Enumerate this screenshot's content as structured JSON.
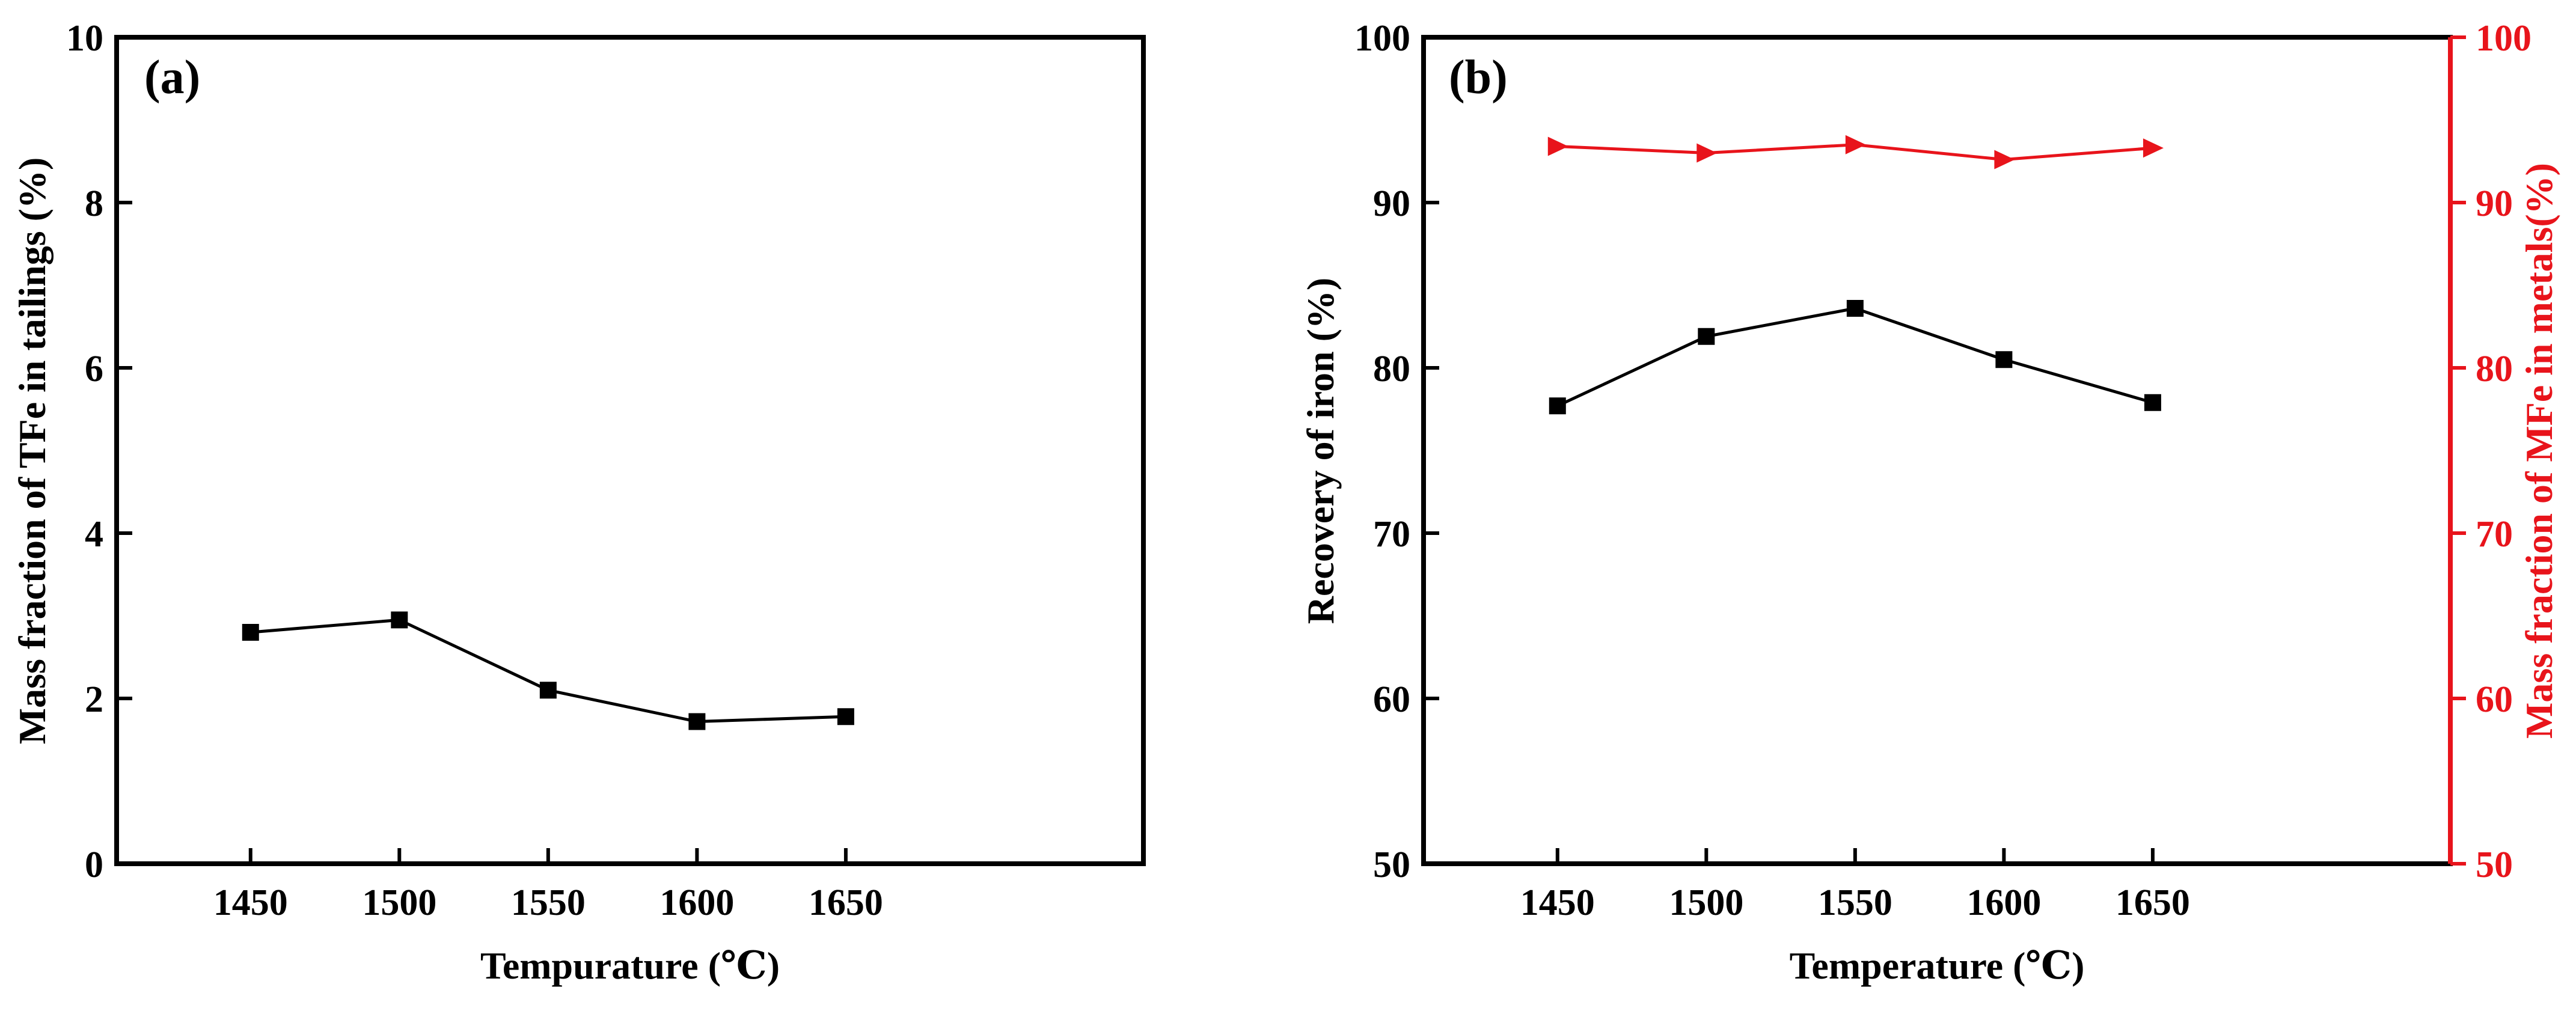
{
  "chart_data": [
    {
      "type": "line",
      "panel_label": "(a)",
      "x": [
        1450,
        1500,
        1550,
        1600,
        1650
      ],
      "xticks": [
        "1450",
        "1500",
        "1550",
        "1600",
        "1650"
      ],
      "xlim": [
        1405,
        1750
      ],
      "xlabel": "Tempurature (℃)",
      "ylabel": "Mass fraction of  TFe in tailings (%)",
      "ylim": [
        0,
        10
      ],
      "yticks": [
        "0",
        "2",
        "4",
        "6",
        "8",
        "10"
      ],
      "grid": false,
      "series": [
        {
          "name": "TFe in tailings",
          "axis": "left",
          "marker": "square",
          "color": "#000000",
          "values": [
            2.8,
            2.95,
            2.1,
            1.72,
            1.78
          ]
        }
      ]
    },
    {
      "type": "line",
      "panel_label": "(b)",
      "x": [
        1450,
        1500,
        1550,
        1600,
        1650
      ],
      "xticks": [
        "1450",
        "1500",
        "1550",
        "1600",
        "1650"
      ],
      "xlim": [
        1405,
        1750
      ],
      "xlabel": "Temperature (℃)",
      "ylabel": "Recovery of iron (%)",
      "ylabel_right": "Mass fraction of MFe in metals(%)",
      "ylim": [
        50,
        100
      ],
      "yticks": [
        "50",
        "60",
        "70",
        "80",
        "90",
        "100"
      ],
      "ylim_right": [
        50,
        100
      ],
      "yticks_right": [
        "50",
        "60",
        "70",
        "80",
        "90",
        "100"
      ],
      "right_axis_color": "#e8141b",
      "grid": false,
      "series": [
        {
          "name": "Recovery of iron",
          "axis": "left",
          "marker": "square",
          "color": "#000000",
          "values": [
            77.7,
            81.9,
            83.6,
            80.5,
            77.9
          ]
        },
        {
          "name": "MFe in metals",
          "axis": "right",
          "marker": "triangle-right",
          "color": "#e8141b",
          "values": [
            93.4,
            93.0,
            93.5,
            92.6,
            93.3
          ]
        }
      ]
    }
  ]
}
